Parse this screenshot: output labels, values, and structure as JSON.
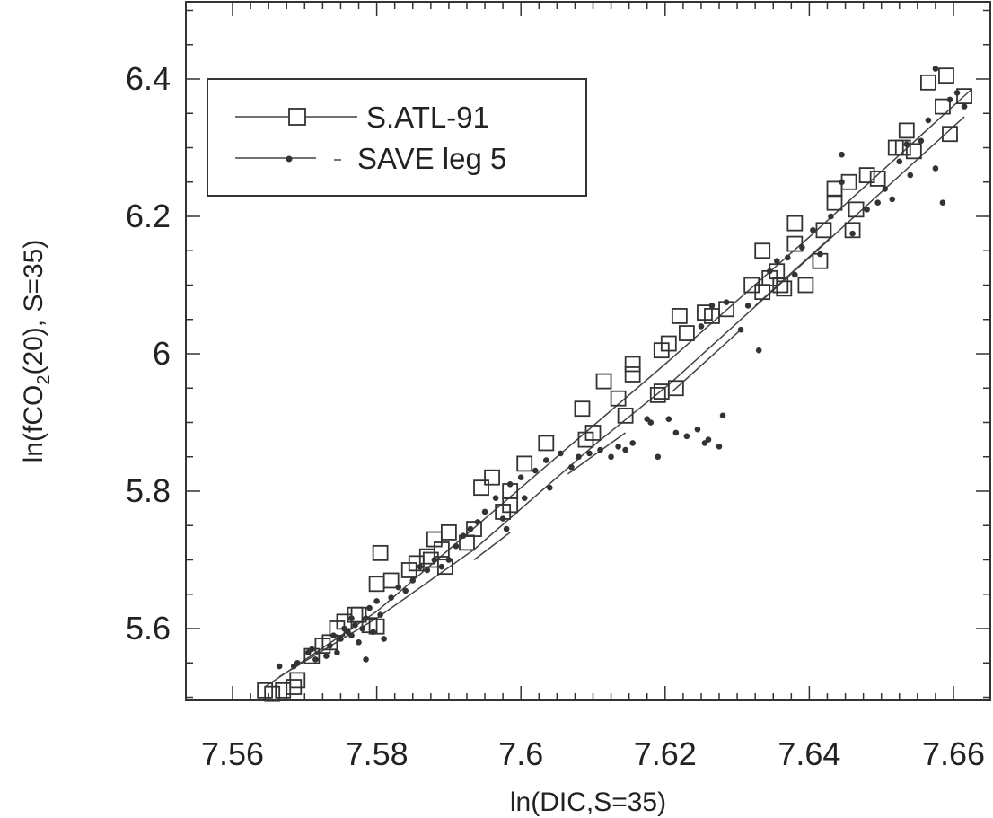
{
  "chart_data": {
    "type": "scatter",
    "xlabel": "ln(DIC,S=35)",
    "ylabel": {
      "main": "ln(fCO",
      "sub": "2",
      "rest": "(20),  S=35)"
    },
    "xlim": [
      7.56,
      7.66
    ],
    "ylim": [
      5.5,
      6.5
    ],
    "x_ticks": [
      7.56,
      7.58,
      7.6,
      7.62,
      7.64,
      7.66
    ],
    "x_tick_labels": [
      "7.56",
      "7.58",
      "7.6",
      "7.62",
      "7.64",
      "7.66"
    ],
    "y_ticks": [
      5.6,
      5.8,
      6.0,
      6.2,
      6.4
    ],
    "y_tick_labels": [
      "5.6",
      "5.8",
      "6",
      "6.2",
      "6.4"
    ],
    "grid": false,
    "legend_position": "top-left",
    "series": [
      {
        "name": "S.ATL-91",
        "marker": "square",
        "color": "#333333",
        "points": [
          [
            7.5645,
            5.51
          ],
          [
            7.5655,
            5.505
          ],
          [
            7.567,
            5.51
          ],
          [
            7.5685,
            5.515
          ],
          [
            7.569,
            5.525
          ],
          [
            7.571,
            5.56
          ],
          [
            7.5725,
            5.575
          ],
          [
            7.5735,
            5.58
          ],
          [
            7.5745,
            5.6
          ],
          [
            7.5755,
            5.61
          ],
          [
            7.577,
            5.62
          ],
          [
            7.5775,
            5.62
          ],
          [
            7.579,
            5.605
          ],
          [
            7.58,
            5.603
          ],
          [
            7.58,
            5.665
          ],
          [
            7.5805,
            5.71
          ],
          [
            7.582,
            5.67
          ],
          [
            7.5845,
            5.685
          ],
          [
            7.5855,
            5.695
          ],
          [
            7.587,
            5.705
          ],
          [
            7.5875,
            5.7
          ],
          [
            7.588,
            5.73
          ],
          [
            7.589,
            5.715
          ],
          [
            7.5895,
            5.69
          ],
          [
            7.59,
            5.74
          ],
          [
            7.5925,
            5.725
          ],
          [
            7.5935,
            5.745
          ],
          [
            7.5945,
            5.805
          ],
          [
            7.5985,
            5.8
          ],
          [
            7.596,
            5.82
          ],
          [
            7.5975,
            5.77
          ],
          [
            7.5985,
            5.78
          ],
          [
            7.6005,
            5.84
          ],
          [
            7.6035,
            5.87
          ],
          [
            7.6085,
            5.92
          ],
          [
            7.61,
            5.885
          ],
          [
            7.609,
            5.875
          ],
          [
            7.6115,
            5.96
          ],
          [
            7.6135,
            5.935
          ],
          [
            7.6145,
            5.91
          ],
          [
            7.6155,
            5.985
          ],
          [
            7.6155,
            5.97
          ],
          [
            7.619,
            5.94
          ],
          [
            7.6195,
            5.945
          ],
          [
            7.6195,
            6.005
          ],
          [
            7.6205,
            6.015
          ],
          [
            7.6215,
            5.95
          ],
          [
            7.622,
            6.055
          ],
          [
            7.623,
            6.03
          ],
          [
            7.6255,
            6.06
          ],
          [
            7.6265,
            6.055
          ],
          [
            7.6285,
            6.065
          ],
          [
            7.632,
            6.1
          ],
          [
            7.6335,
            6.09
          ],
          [
            7.6335,
            6.15
          ],
          [
            7.6345,
            6.11
          ],
          [
            7.6355,
            6.12
          ],
          [
            7.636,
            6.1
          ],
          [
            7.6365,
            6.095
          ],
          [
            7.638,
            6.19
          ],
          [
            7.638,
            6.16
          ],
          [
            7.6395,
            6.1
          ],
          [
            7.6415,
            6.135
          ],
          [
            7.642,
            6.18
          ],
          [
            7.6435,
            6.22
          ],
          [
            7.6435,
            6.24
          ],
          [
            7.6455,
            6.25
          ],
          [
            7.646,
            6.18
          ],
          [
            7.6465,
            6.21
          ],
          [
            7.648,
            6.26
          ],
          [
            7.6495,
            6.255
          ],
          [
            7.652,
            6.3
          ],
          [
            7.653,
            6.3
          ],
          [
            7.6535,
            6.325
          ],
          [
            7.6545,
            6.295
          ],
          [
            7.6565,
            6.395
          ],
          [
            7.6585,
            6.36
          ],
          [
            7.659,
            6.405
          ],
          [
            7.6595,
            6.32
          ],
          [
            7.6615,
            6.375
          ]
        ]
      },
      {
        "name": "SAVE leg 5",
        "marker": "dot",
        "color": "#333333",
        "points": [
          [
            7.5665,
            5.545
          ],
          [
            7.5685,
            5.545
          ],
          [
            7.569,
            5.55
          ],
          [
            7.5705,
            5.565
          ],
          [
            7.571,
            5.57
          ],
          [
            7.5715,
            5.555
          ],
          [
            7.573,
            5.56
          ],
          [
            7.5735,
            5.575
          ],
          [
            7.574,
            5.59
          ],
          [
            7.5745,
            5.565
          ],
          [
            7.575,
            5.585
          ],
          [
            7.5755,
            5.6
          ],
          [
            7.576,
            5.595
          ],
          [
            7.5765,
            5.615
          ],
          [
            7.5765,
            5.59
          ],
          [
            7.577,
            5.605
          ],
          [
            7.5775,
            5.58
          ],
          [
            7.578,
            5.6
          ],
          [
            7.5785,
            5.615
          ],
          [
            7.5785,
            5.555
          ],
          [
            7.579,
            5.63
          ],
          [
            7.5795,
            5.595
          ],
          [
            7.58,
            5.64
          ],
          [
            7.5805,
            5.62
          ],
          [
            7.581,
            5.585
          ],
          [
            7.582,
            5.645
          ],
          [
            7.583,
            5.66
          ],
          [
            7.584,
            5.655
          ],
          [
            7.585,
            5.67
          ],
          [
            7.586,
            5.69
          ],
          [
            7.587,
            5.685
          ],
          [
            7.588,
            5.7
          ],
          [
            7.589,
            5.69
          ],
          [
            7.59,
            5.7
          ],
          [
            7.591,
            5.72
          ],
          [
            7.592,
            5.735
          ],
          [
            7.593,
            5.745
          ],
          [
            7.594,
            5.755
          ],
          [
            7.595,
            5.77
          ],
          [
            7.5965,
            5.79
          ],
          [
            7.5975,
            5.76
          ],
          [
            7.598,
            5.745
          ],
          [
            7.5985,
            5.81
          ],
          [
            7.6,
            5.82
          ],
          [
            7.6005,
            5.79
          ],
          [
            7.602,
            5.83
          ],
          [
            7.6035,
            5.845
          ],
          [
            7.604,
            5.805
          ],
          [
            7.6055,
            5.855
          ],
          [
            7.607,
            5.835
          ],
          [
            7.608,
            5.85
          ],
          [
            7.6095,
            5.855
          ],
          [
            7.611,
            5.86
          ],
          [
            7.6125,
            5.85
          ],
          [
            7.6135,
            5.865
          ],
          [
            7.6145,
            5.86
          ],
          [
            7.6155,
            5.87
          ],
          [
            7.6175,
            5.905
          ],
          [
            7.618,
            5.9
          ],
          [
            7.619,
            5.85
          ],
          [
            7.6205,
            5.905
          ],
          [
            7.6215,
            5.885
          ],
          [
            7.623,
            5.88
          ],
          [
            7.6245,
            5.89
          ],
          [
            7.6255,
            5.87
          ],
          [
            7.626,
            5.875
          ],
          [
            7.6275,
            5.865
          ],
          [
            7.628,
            5.91
          ],
          [
            7.625,
            6.04
          ],
          [
            7.6265,
            6.07
          ],
          [
            7.6285,
            6.075
          ],
          [
            7.6305,
            6.035
          ],
          [
            7.6315,
            6.07
          ],
          [
            7.633,
            6.005
          ],
          [
            7.6345,
            6.12
          ],
          [
            7.6355,
            6.135
          ],
          [
            7.637,
            6.14
          ],
          [
            7.638,
            6.115
          ],
          [
            7.639,
            6.155
          ],
          [
            7.6405,
            6.18
          ],
          [
            7.6415,
            6.145
          ],
          [
            7.643,
            6.2
          ],
          [
            7.6445,
            6.25
          ],
          [
            7.6445,
            6.29
          ],
          [
            7.646,
            6.175
          ],
          [
            7.648,
            6.21
          ],
          [
            7.6495,
            6.22
          ],
          [
            7.6505,
            6.24
          ],
          [
            7.6515,
            6.225
          ],
          [
            7.6525,
            6.28
          ],
          [
            7.6535,
            6.305
          ],
          [
            7.654,
            6.26
          ],
          [
            7.6555,
            6.31
          ],
          [
            7.6565,
            6.34
          ],
          [
            7.6575,
            6.27
          ],
          [
            7.6575,
            6.415
          ],
          [
            7.6585,
            6.22
          ],
          [
            7.6595,
            6.37
          ],
          [
            7.6605,
            6.38
          ],
          [
            7.6615,
            6.36
          ]
        ]
      }
    ],
    "fit_lines": [
      {
        "series": "S.ATL-91",
        "points": [
          [
            7.5645,
            5.515
          ],
          [
            7.58,
            5.625
          ],
          [
            7.6,
            5.805
          ],
          [
            7.62,
            5.985
          ],
          [
            7.64,
            6.17
          ],
          [
            7.6625,
            6.385
          ]
        ]
      },
      {
        "series": "SAVE leg 5",
        "points": [
          [
            7.5665,
            5.53
          ],
          [
            7.58,
            5.615
          ],
          [
            7.5935,
            5.715
          ],
          [
            7.6105,
            5.87
          ],
          [
            7.6205,
            5.955
          ],
          [
            7.64,
            6.14
          ],
          [
            7.6615,
            6.345
          ]
        ]
      },
      {
        "series": "SAVE leg 5",
        "points": [
          [
            7.5935,
            5.7
          ],
          [
            7.5985,
            5.74
          ]
        ]
      },
      {
        "series": "SAVE leg 5",
        "points": [
          [
            7.6065,
            5.825
          ],
          [
            7.6145,
            5.885
          ]
        ]
      },
      {
        "series": "SAVE leg 5",
        "points": [
          [
            7.621,
            5.945
          ],
          [
            7.6305,
            6.035
          ]
        ]
      },
      {
        "series": "SAVE leg 5",
        "points": [
          [
            7.6325,
            6.07
          ],
          [
            7.643,
            6.17
          ]
        ]
      }
    ]
  }
}
